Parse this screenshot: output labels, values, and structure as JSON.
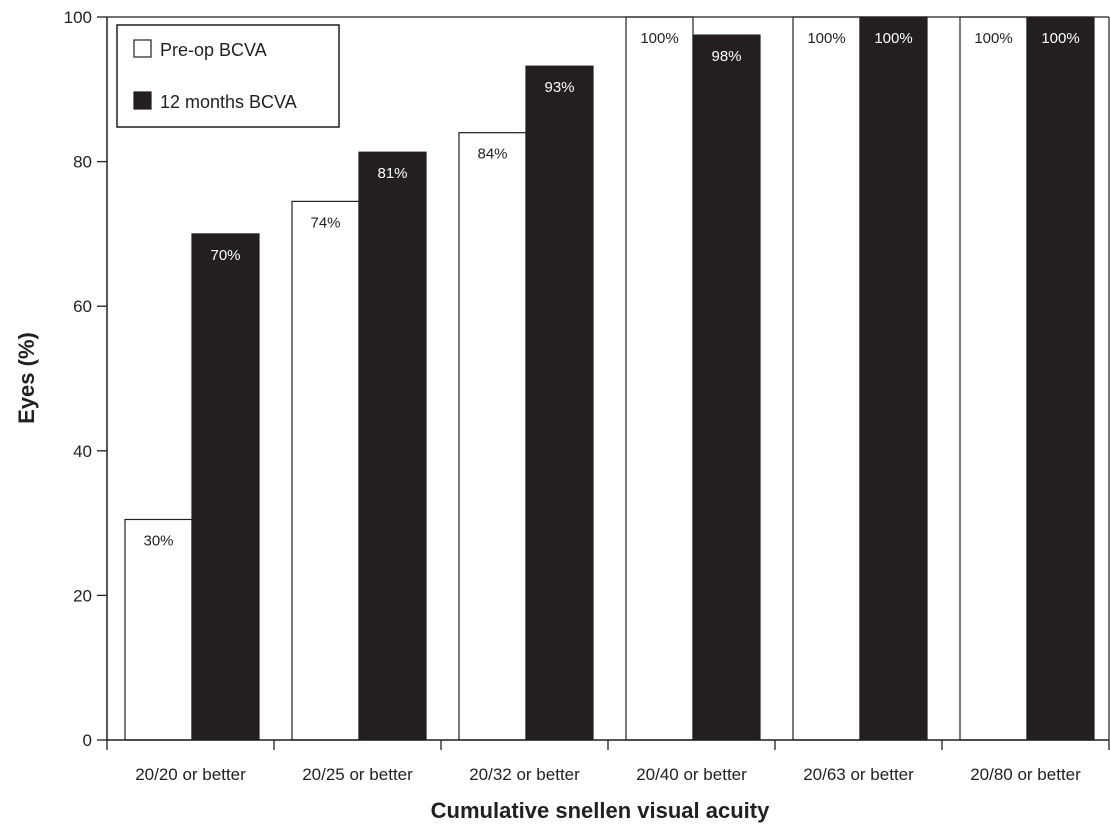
{
  "chart_data": {
    "type": "bar",
    "xlabel": "Cumulative snellen visual acuity",
    "ylabel": "Eyes (%)",
    "ylim": [
      0,
      100
    ],
    "yticks": [
      "0",
      "20",
      "40",
      "60",
      "80",
      "100"
    ],
    "categories": [
      "20/20 or better",
      "20/25 or better",
      "20/32 or better",
      "20/40 or better",
      "20/63 or better",
      "20/80 or better"
    ],
    "series": [
      {
        "name": "Pre-op BCVA",
        "color": "#ffffff",
        "values": [
          30.5,
          74.5,
          84,
          100,
          100,
          100
        ],
        "labels": [
          "30%",
          "74%",
          "84%",
          "100%",
          "100%",
          "100%"
        ]
      },
      {
        "name": "12 months BCVA",
        "color": "#231f20",
        "values": [
          70,
          81.3,
          93.2,
          97.5,
          100,
          100
        ],
        "labels": [
          "70%",
          "81%",
          "93%",
          "98%",
          "100%",
          "100%"
        ]
      }
    ],
    "legend": "top-left",
    "grid": false
  }
}
